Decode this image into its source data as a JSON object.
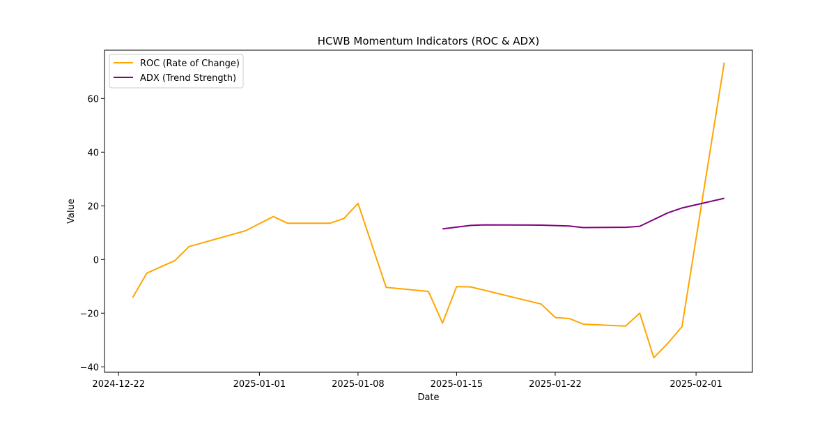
{
  "chart_data": {
    "type": "line",
    "title": "HCWB Momentum Indicators (ROC & ADX)",
    "xlabel": "Date",
    "ylabel": "Value",
    "x_ticks": [
      "2024-12-22",
      "2025-01-01",
      "2025-01-08",
      "2025-01-15",
      "2025-01-22",
      "2025-02-01"
    ],
    "y_ticks": [
      -40,
      -20,
      0,
      20,
      40,
      60
    ],
    "xlim": [
      "2024-12-21",
      "2025-02-05"
    ],
    "ylim": [
      -42,
      78
    ],
    "grid": false,
    "legend_position": "upper-left",
    "series": [
      {
        "name": "ROC (Rate of Change)",
        "color": "#FFA500",
        "points": [
          {
            "x": "2024-12-23",
            "y": -14.2
          },
          {
            "x": "2024-12-24",
            "y": -5.1
          },
          {
            "x": "2024-12-26",
            "y": -0.4
          },
          {
            "x": "2024-12-27",
            "y": 4.8
          },
          {
            "x": "2024-12-31",
            "y": 10.7
          },
          {
            "x": "2025-01-02",
            "y": 16.0
          },
          {
            "x": "2025-01-03",
            "y": 13.5
          },
          {
            "x": "2025-01-06",
            "y": 13.5
          },
          {
            "x": "2025-01-07",
            "y": 15.3
          },
          {
            "x": "2025-01-08",
            "y": 20.9
          },
          {
            "x": "2025-01-10",
            "y": -10.4
          },
          {
            "x": "2025-01-13",
            "y": -11.9
          },
          {
            "x": "2025-01-14",
            "y": -23.7
          },
          {
            "x": "2025-01-15",
            "y": -10.1
          },
          {
            "x": "2025-01-16",
            "y": -10.2
          },
          {
            "x": "2025-01-21",
            "y": -16.6
          },
          {
            "x": "2025-01-22",
            "y": -21.6
          },
          {
            "x": "2025-01-23",
            "y": -22.0
          },
          {
            "x": "2025-01-24",
            "y": -24.1
          },
          {
            "x": "2025-01-27",
            "y": -24.8
          },
          {
            "x": "2025-01-28",
            "y": -20.0
          },
          {
            "x": "2025-01-29",
            "y": -36.6
          },
          {
            "x": "2025-01-30",
            "y": -31.2
          },
          {
            "x": "2025-01-31",
            "y": -25.0
          },
          {
            "x": "2025-02-03",
            "y": 73.4
          }
        ]
      },
      {
        "name": "ADX (Trend Strength)",
        "color": "#800080",
        "points": [
          {
            "x": "2025-01-14",
            "y": 11.4
          },
          {
            "x": "2025-01-16",
            "y": 12.7
          },
          {
            "x": "2025-01-17",
            "y": 12.9
          },
          {
            "x": "2025-01-21",
            "y": 12.8
          },
          {
            "x": "2025-01-23",
            "y": 12.5
          },
          {
            "x": "2025-01-24",
            "y": 11.9
          },
          {
            "x": "2025-01-27",
            "y": 12.0
          },
          {
            "x": "2025-01-28",
            "y": 12.4
          },
          {
            "x": "2025-01-30",
            "y": 17.4
          },
          {
            "x": "2025-01-31",
            "y": 19.2
          },
          {
            "x": "2025-02-03",
            "y": 22.8
          }
        ]
      }
    ]
  }
}
